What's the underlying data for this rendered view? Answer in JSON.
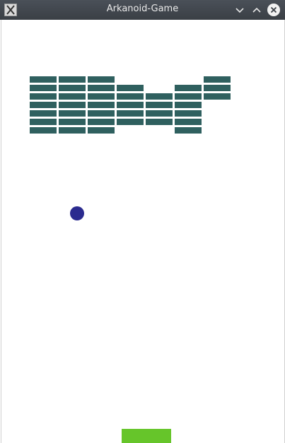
{
  "window": {
    "title": "Arkanoid-Game",
    "icons": {
      "app": "x11-app-icon",
      "minimize": "chevron-down-icon",
      "maximize": "chevron-up-icon",
      "close": "close-icon"
    }
  },
  "colors": {
    "brick": "#2f605f",
    "brick_border": "#ffffff",
    "ball": "#2b2b8f",
    "paddle": "#66c52a",
    "background": "#ffffff"
  },
  "board": {
    "columns": 7,
    "rows": 7,
    "bricks": [
      [
        1,
        1,
        1,
        0,
        0,
        0,
        1
      ],
      [
        1,
        1,
        1,
        1,
        0,
        1,
        1
      ],
      [
        1,
        1,
        1,
        1,
        1,
        1,
        1
      ],
      [
        1,
        1,
        1,
        1,
        1,
        1,
        0
      ],
      [
        1,
        1,
        1,
        1,
        1,
        1,
        0
      ],
      [
        1,
        1,
        1,
        1,
        1,
        1,
        0
      ],
      [
        1,
        1,
        1,
        0,
        0,
        1,
        0
      ]
    ]
  }
}
